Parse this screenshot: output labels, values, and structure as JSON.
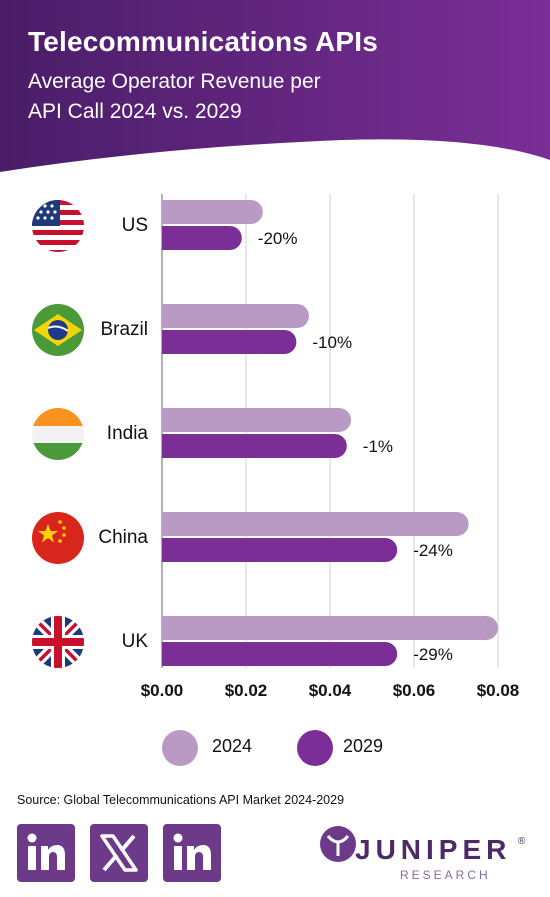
{
  "header": {
    "title": "Telecommunications APIs",
    "subtitle_line1": "Average Operator Revenue per",
    "subtitle_line2": "API Call 2024 vs. 2029"
  },
  "colors": {
    "series_2024": "#b89ac4",
    "series_2029": "#7a2e96",
    "header_bg": "#6a2a8a"
  },
  "chart_data": {
    "type": "bar",
    "orientation": "horizontal",
    "categories": [
      "US",
      "Brazil",
      "India",
      "China",
      "UK"
    ],
    "category_icons": [
      "us-flag-icon",
      "brazil-flag-icon",
      "india-flag-icon",
      "china-flag-icon",
      "uk-flag-icon"
    ],
    "series": [
      {
        "name": "2024",
        "values": [
          0.024,
          0.035,
          0.045,
          0.073,
          0.08
        ]
      },
      {
        "name": "2029",
        "values": [
          0.019,
          0.032,
          0.044,
          0.056,
          0.056
        ]
      }
    ],
    "change_labels": [
      "-20%",
      "-10%",
      "-1%",
      "-24%",
      "-29%"
    ],
    "xlim": [
      0,
      0.08
    ],
    "x_ticks": [
      0,
      0.02,
      0.04,
      0.06,
      0.08
    ],
    "x_tick_labels": [
      "$0.00",
      "$0.02",
      "$0.04",
      "$0.06",
      "$0.08"
    ],
    "grid": true,
    "legend_position": "bottom"
  },
  "legend": {
    "items": [
      {
        "label": "2024"
      },
      {
        "label": "2029"
      }
    ]
  },
  "source": "Source: Global Telecommunications API Market 2024-2029",
  "footer": {
    "logo_text": "JUNIPER",
    "logo_sub": "RESEARCH",
    "logo_reg": "®"
  }
}
